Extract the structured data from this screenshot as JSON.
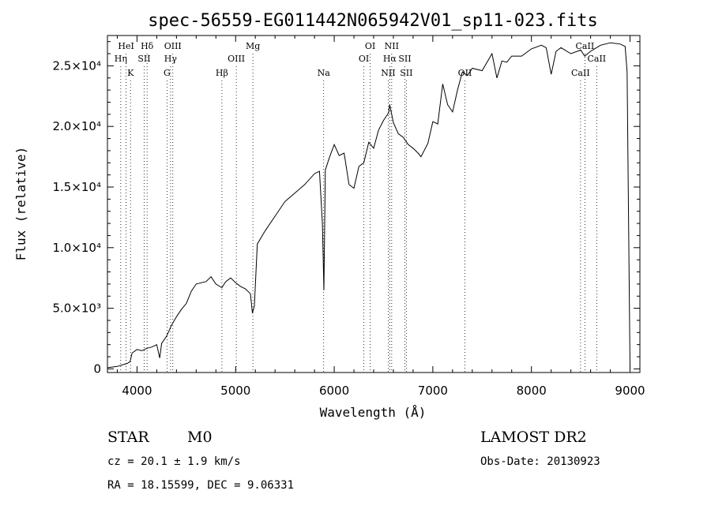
{
  "chart_data": {
    "type": "line",
    "title": "spec-56559-EG011442N065942V01_sp11-023.fits",
    "xlabel": "Wavelength (Å)",
    "ylabel": "Flux (relative)",
    "xlim": [
      3700,
      9100
    ],
    "ylim": [
      -300,
      27500
    ],
    "x_ticks": [
      4000,
      5000,
      6000,
      7000,
      8000,
      9000
    ],
    "x_tick_labels": [
      "4000",
      "5000",
      "6000",
      "7000",
      "8000",
      "9000"
    ],
    "y_ticks": [
      0,
      5000,
      10000,
      15000,
      20000,
      25000
    ],
    "y_tick_labels": [
      "0",
      "5.0×10³",
      "1.0×10⁴",
      "1.5×10⁴",
      "2.0×10⁴",
      "2.5×10⁴"
    ],
    "grid": false,
    "series": [
      {
        "x": [
          3700,
          3800,
          3900,
          3930,
          3950,
          4000,
          4050,
          4100,
          4150,
          4200,
          4230,
          4250,
          4300,
          4350,
          4400,
          4450,
          4500,
          4550,
          4600,
          4650,
          4700,
          4750,
          4800,
          4860,
          4900,
          4950,
          5000,
          5050,
          5100,
          5150,
          5170,
          5190,
          5220,
          5300,
          5400,
          5500,
          5600,
          5700,
          5800,
          5850,
          5880,
          5895,
          5910,
          5950,
          6000,
          6050,
          6100,
          6150,
          6200,
          6250,
          6300,
          6350,
          6400,
          6450,
          6500,
          6550,
          6563,
          6600,
          6650,
          6700,
          6750,
          6800,
          6850,
          6880,
          6950,
          7000,
          7050,
          7100,
          7150,
          7200,
          7250,
          7300,
          7350,
          7400,
          7500,
          7600,
          7650,
          7700,
          7750,
          7800,
          7900,
          8000,
          8100,
          8150,
          8200,
          8250,
          8300,
          8400,
          8500,
          8540,
          8600,
          8660,
          8700,
          8800,
          8900,
          8950,
          8970,
          9000
        ],
        "y": [
          100,
          200,
          450,
          600,
          1300,
          1600,
          1500,
          1700,
          1800,
          2000,
          900,
          2100,
          2700,
          3600,
          4300,
          4900,
          5400,
          6400,
          7000,
          7100,
          7200,
          7600,
          7000,
          6700,
          7200,
          7500,
          7100,
          6800,
          6600,
          6200,
          4600,
          5200,
          10300,
          11400,
          12600,
          13800,
          14500,
          15200,
          16100,
          16300,
          12000,
          6500,
          16400,
          17400,
          18500,
          17600,
          17800,
          15200,
          14900,
          16700,
          17000,
          18700,
          18200,
          19700,
          20500,
          21100,
          21800,
          20300,
          19400,
          19100,
          18500,
          18200,
          17800,
          17500,
          18600,
          20400,
          20200,
          23500,
          21800,
          21200,
          23000,
          24500,
          24200,
          24800,
          24600,
          26000,
          24000,
          25400,
          25300,
          25800,
          25800,
          26400,
          26700,
          26500,
          24300,
          26200,
          26500,
          26000,
          26300,
          25800,
          26200,
          26500,
          26700,
          26900,
          26800,
          26600,
          24500,
          100
        ]
      }
    ],
    "spectral_lines": [
      {
        "name": "HeI",
        "wavelength": 3889,
        "row": 1
      },
      {
        "name": "Hη",
        "wavelength": 3835,
        "row": 2
      },
      {
        "name": "K",
        "wavelength": 3934,
        "row": 3
      },
      {
        "name": "Hδ",
        "wavelength": 4102,
        "row": 1
      },
      {
        "name": "SII",
        "wavelength": 4072,
        "row": 2
      },
      {
        "name": "OIII",
        "wavelength": 4363,
        "row": 1
      },
      {
        "name": "Hγ",
        "wavelength": 4340,
        "row": 2
      },
      {
        "name": "G",
        "wavelength": 4304,
        "row": 3
      },
      {
        "name": "Mg",
        "wavelength": 5175,
        "row": 1
      },
      {
        "name": "OIII",
        "wavelength": 5007,
        "row": 2
      },
      {
        "name": "Hβ",
        "wavelength": 4861,
        "row": 3
      },
      {
        "name": "Na",
        "wavelength": 5893,
        "row": 3
      },
      {
        "name": "OI",
        "wavelength": 6364,
        "row": 1
      },
      {
        "name": "OI",
        "wavelength": 6300,
        "row": 2
      },
      {
        "name": "NII",
        "wavelength": 6583,
        "row": 1
      },
      {
        "name": "Hα",
        "wavelength": 6563,
        "row": 2
      },
      {
        "name": "SII",
        "wavelength": 6716,
        "row": 2
      },
      {
        "name": "NII",
        "wavelength": 6548,
        "row": 3
      },
      {
        "name": "SII",
        "wavelength": 6731,
        "row": 3
      },
      {
        "name": "OII",
        "wavelength": 7325,
        "row": 3
      },
      {
        "name": "CaII",
        "wavelength": 8542,
        "row": 1
      },
      {
        "name": "CaII",
        "wavelength": 8662,
        "row": 2
      },
      {
        "name": "CaII",
        "wavelength": 8498,
        "row": 3
      }
    ]
  },
  "info": {
    "object_class": "STAR",
    "subclass": "M0",
    "survey": "LAMOST DR2",
    "redshift": "cz = 20.1 ± 1.9 km/s",
    "obs_date": "Obs-Date: 20130923",
    "coords": "RA =  18.15599, DEC =   9.06331"
  }
}
